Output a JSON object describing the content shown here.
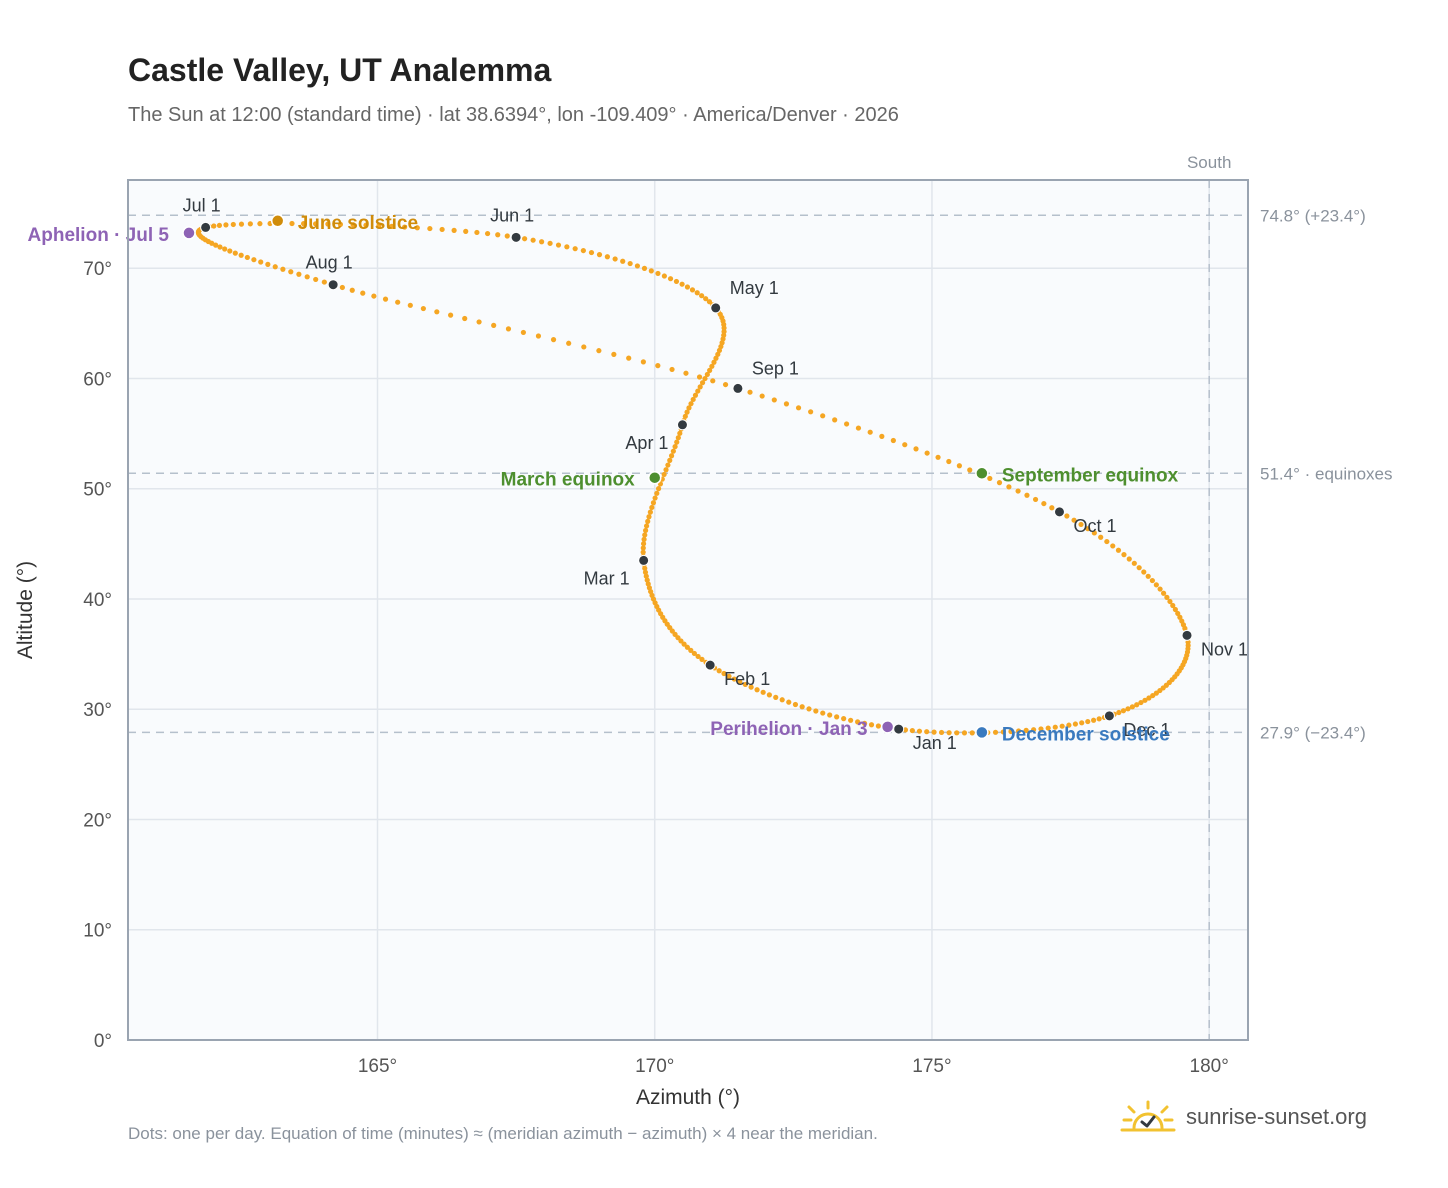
{
  "header": {
    "title": "Castle Valley, UT Analemma",
    "subtitle": "The Sun at 12:00 (standard time) · lat 38.6394°, lon -109.409° · America/Denver · 2026"
  },
  "footer": {
    "note": "Dots: one per day. Equation of time (minutes) ≈ (meridian azimuth − azimuth) × 4 near the meridian.",
    "brand": "sunrise-sunset.org",
    "brand_icon": "sun-checkmark-icon"
  },
  "colors": {
    "curve": "#f5a623",
    "month_dot": "#333a40",
    "solstice_june": "#d08c0a",
    "solstice_december": "#3a7abf",
    "equinox": "#4e8f2f",
    "apsis": "#8e63b5",
    "plot_bg": "#f9fbfd",
    "grid": "#e1e6ec",
    "frame": "#9aa4b1",
    "reference_line": "#b5c0cc"
  },
  "chart_data": {
    "type": "scatter",
    "xlabel": "Azimuth (°)",
    "ylabel": "Altitude (°)",
    "xlim": [
      160.5,
      180.7
    ],
    "ylim": [
      0,
      78
    ],
    "xticks": [
      165,
      170,
      175,
      180
    ],
    "yticks": [
      0,
      10,
      20,
      30,
      40,
      50,
      60,
      70
    ],
    "x_tick_labels": [
      "165°",
      "170°",
      "175°",
      "180°"
    ],
    "y_tick_labels": [
      "0°",
      "10°",
      "20°",
      "30°",
      "40°",
      "50°",
      "60°",
      "70°"
    ],
    "grid": true,
    "meridian": {
      "azimuth": 180,
      "label": "South"
    },
    "reference_lines": [
      {
        "altitude": 74.8,
        "label": "74.8° (+23.4°)"
      },
      {
        "altitude": 51.4,
        "label": "51.4° · equinoxes"
      },
      {
        "altitude": 27.9,
        "label": "27.9° (−23.4°)"
      }
    ],
    "series": [
      {
        "name": "Daily Sun position",
        "points": [
          {
            "date": "Jan 1",
            "x": 174.4,
            "y": 28.2
          },
          {
            "date": "Feb 1",
            "x": 171.0,
            "y": 34.0
          },
          {
            "date": "Mar 1",
            "x": 169.8,
            "y": 43.5
          },
          {
            "date": "Apr 1",
            "x": 170.5,
            "y": 55.8
          },
          {
            "date": "May 1",
            "x": 171.1,
            "y": 66.4
          },
          {
            "date": "Jun 1",
            "x": 167.5,
            "y": 72.8
          },
          {
            "date": "Jul 1",
            "x": 161.9,
            "y": 73.7
          },
          {
            "date": "Aug 1",
            "x": 164.2,
            "y": 68.5
          },
          {
            "date": "Sep 1",
            "x": 171.5,
            "y": 59.1
          },
          {
            "date": "Oct 1",
            "x": 177.3,
            "y": 47.9
          },
          {
            "date": "Nov 1",
            "x": 179.6,
            "y": 36.7
          },
          {
            "date": "Dec 1",
            "x": 178.2,
            "y": 29.4
          }
        ]
      }
    ],
    "month_labels": [
      {
        "date": "Jan 1",
        "text": "Jan 1",
        "anchor": "start"
      },
      {
        "date": "Feb 1",
        "text": "Feb 1",
        "anchor": "start"
      },
      {
        "date": "Mar 1",
        "text": "Mar 1",
        "anchor": "end"
      },
      {
        "date": "Apr 1",
        "text": "Apr 1",
        "anchor": "end"
      },
      {
        "date": "May 1",
        "text": "May 1",
        "anchor": "start"
      },
      {
        "date": "Jun 1",
        "text": "Jun 1",
        "anchor": "middle"
      },
      {
        "date": "Jul 1",
        "text": "Jul 1",
        "anchor": "middle"
      },
      {
        "date": "Aug 1",
        "text": "Aug 1",
        "anchor": "middle"
      },
      {
        "date": "Sep 1",
        "text": "Sep 1",
        "anchor": "start"
      },
      {
        "date": "Oct 1",
        "text": "Oct 1",
        "anchor": "start"
      },
      {
        "date": "Nov 1",
        "text": "Nov 1",
        "anchor": "start"
      },
      {
        "date": "Dec 1",
        "text": "Dec 1",
        "anchor": "start"
      }
    ],
    "events": [
      {
        "label": "June solstice",
        "x": 163.2,
        "y": 74.3,
        "color_key": "solstice_june",
        "anchor": "start"
      },
      {
        "label": "December solstice",
        "x": 175.9,
        "y": 27.9,
        "color_key": "solstice_december",
        "anchor": "start"
      },
      {
        "label": "March equinox",
        "x": 170.0,
        "y": 51.0,
        "color_key": "equinox",
        "anchor": "end"
      },
      {
        "label": "September equinox",
        "x": 175.9,
        "y": 51.4,
        "color_key": "equinox",
        "anchor": "start"
      },
      {
        "label": "Aphelion · Jul 5",
        "x": 161.6,
        "y": 73.2,
        "color_key": "apsis",
        "anchor": "end"
      },
      {
        "label": "Perihelion · Jan 3",
        "x": 174.2,
        "y": 28.4,
        "color_key": "apsis",
        "anchor": "end"
      }
    ]
  }
}
